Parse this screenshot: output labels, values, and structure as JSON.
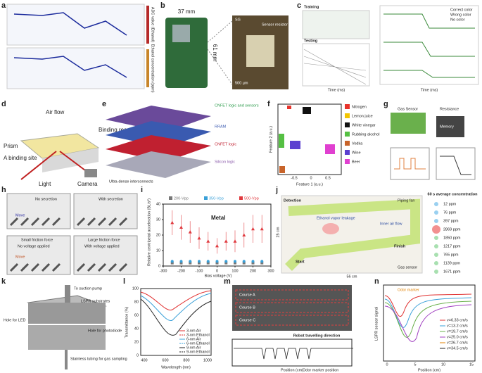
{
  "panels": {
    "a": {
      "letter": "a",
      "colorbar_labels": [
        "ADC value (Ethanol)",
        "Ethanol concentration (ppm)"
      ]
    },
    "b": {
      "letter": "b",
      "width": "37 mm",
      "height": "61 mm",
      "labels": [
        "SG",
        "Sensor resistor",
        "500 µm"
      ]
    },
    "c": {
      "letter": "c",
      "training": "Training",
      "testing": "Testing",
      "xlabel": "Time (ms)",
      "legend": [
        "Correct color",
        "Wrong color",
        "No color"
      ]
    },
    "d": {
      "letter": "d",
      "labels": [
        "Air flow",
        "Binding reaction",
        "Prism",
        "A binding site",
        "Light",
        "Camera"
      ]
    },
    "e": {
      "letter": "e",
      "layers": [
        "CNFET logic and sensors",
        "RRAM",
        "CNFET logic",
        "Silicon logic"
      ],
      "note": "Ultra-dense interconnects"
    },
    "f": {
      "letter": "f",
      "xlabel": "Feature 1 (a.u.)",
      "ylabel": "Feature 2 (a.u.)",
      "xticks": [
        "-0.5",
        "0",
        "0.5"
      ],
      "legend": [
        {
          "name": "Nitrogen",
          "color": "#e8342c"
        },
        {
          "name": "Lemon juice",
          "color": "#f2c500"
        },
        {
          "name": "White vinegar",
          "color": "#111111"
        },
        {
          "name": "Rubbing alcohol",
          "color": "#55c043"
        },
        {
          "name": "Vodka",
          "color": "#c8642a"
        },
        {
          "name": "Wine",
          "color": "#5b3fd0"
        },
        {
          "name": "Beer",
          "color": "#e040d0"
        }
      ]
    },
    "g": {
      "letter": "g",
      "labels": [
        "Gas Sensor",
        "Resistance",
        "Memory"
      ]
    },
    "h": {
      "letter": "h",
      "labels": [
        "Move",
        "No secretion",
        "With secretion",
        "Small friction force",
        "Large friction force",
        "No voltage applied",
        "With voltage applied",
        "Move"
      ]
    },
    "i": {
      "letter": "i"
    },
    "j": {
      "letter": "j",
      "labels": [
        "Detection",
        "Piping fan",
        "Ethanol vapor leakage",
        "Inner air flow",
        "Finish",
        "Start",
        "Gas sensor",
        "25 cm",
        "56 cm"
      ],
      "legend_title": "60 s average concentration",
      "legend": [
        "12 ppm",
        "76 ppm",
        "397 ppm",
        "2869 ppm",
        "1850 ppm",
        "1217 ppm",
        "765 ppm",
        "1139 ppm",
        "1671 ppm"
      ]
    },
    "k": {
      "letter": "k",
      "labels": [
        "To suction pump",
        "LSPR substrates",
        "Hole for LED",
        "Hole for photodiode",
        "Stainless tubing for gas sampling"
      ]
    },
    "l": {
      "letter": "l",
      "xlabel": "Wavelength (nm)",
      "ylabel": "Transmittance (%)",
      "xticks": [
        "400",
        "600",
        "800",
        "1000"
      ],
      "yticks": [
        "0",
        "20",
        "40",
        "60",
        "80",
        "100"
      ],
      "legend": [
        "3-nm Air",
        "3-nm Ethanol",
        "6-nm Air",
        "6-nm Ethanol",
        "9-nm Air",
        "9-nm Ethanol"
      ]
    },
    "m": {
      "letter": "m",
      "courses": [
        "Course A",
        "Course B",
        "Course C"
      ],
      "direction": "Robot travelling direction",
      "xlabel": "Position (cm)",
      "marker": "Odor marker position"
    },
    "n": {
      "letter": "n",
      "marker": "Odor marker",
      "xlabel": "Position (cm)",
      "ylabel": "LSPR sensor signal",
      "xticks": [
        "0",
        "5",
        "10",
        "15"
      ],
      "legend": [
        "v=6.33 cm/s",
        "v=13.2 cm/s",
        "v=19.7 cm/s",
        "v=25.0 cm/s",
        "v=26.7 cm/s",
        "v=34.5 cm/s"
      ]
    }
  },
  "chart_data": {
    "type": "scatter",
    "annotation": "Metal",
    "xlabel": "Bias voltage (V)",
    "ylabel": "Relative centripetal acceleration (BL/s²)",
    "xlim": [
      -300,
      300
    ],
    "xticks": [
      -300,
      -200,
      -100,
      0,
      100,
      200,
      300
    ],
    "ylim": [
      0,
      40
    ],
    "yticks": [
      0,
      10,
      20,
      30,
      40
    ],
    "x": [
      -250,
      -200,
      -150,
      -100,
      -50,
      0,
      50,
      100,
      150,
      200,
      250
    ],
    "series": [
      {
        "name": "200-Vpp",
        "color": "#777777",
        "marker": "square",
        "values": [
          2,
          2,
          2,
          2,
          2,
          2,
          2,
          2,
          2,
          2,
          2
        ],
        "errors": [
          0.5,
          0.5,
          0.5,
          0.5,
          0.5,
          0.5,
          0.5,
          0.5,
          0.5,
          0.5,
          0.5
        ]
      },
      {
        "name": "350-Vpp",
        "color": "#3aa0d8",
        "marker": "circle",
        "values": [
          3,
          3,
          3,
          3,
          3,
          3,
          3,
          3,
          3,
          3,
          3
        ],
        "errors": [
          1,
          1,
          1,
          1,
          1,
          1,
          1,
          1,
          1,
          1,
          1
        ]
      },
      {
        "name": "500-Vpp",
        "color": "#e0393e",
        "marker": "triangle",
        "values": [
          28,
          25,
          22,
          18,
          16,
          13,
          16,
          16,
          20,
          24,
          24
        ],
        "errors": [
          8,
          8,
          7,
          7,
          6,
          5,
          6,
          7,
          8,
          9,
          9
        ]
      }
    ]
  }
}
